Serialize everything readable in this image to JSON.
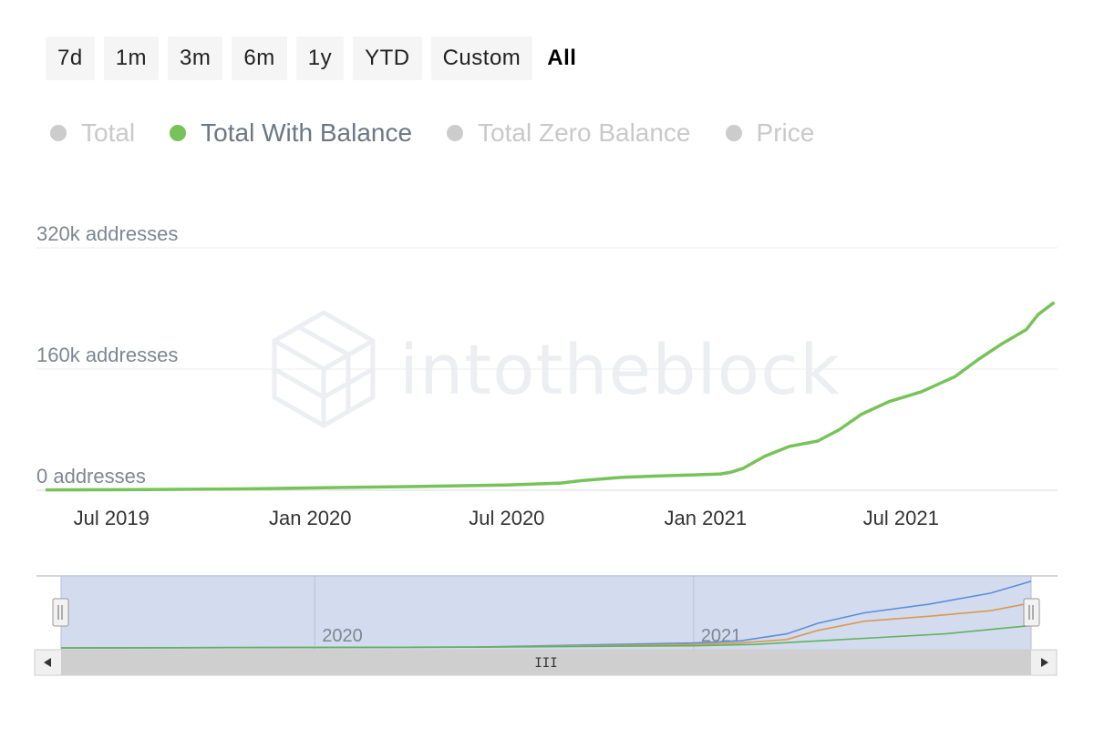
{
  "range_buttons": [
    {
      "label": "7d",
      "active": false
    },
    {
      "label": "1m",
      "active": false
    },
    {
      "label": "3m",
      "active": false
    },
    {
      "label": "6m",
      "active": false
    },
    {
      "label": "1y",
      "active": false
    },
    {
      "label": "YTD",
      "active": false
    },
    {
      "label": "Custom",
      "active": false
    },
    {
      "label": "All",
      "active": true
    }
  ],
  "legend": [
    {
      "label": "Total",
      "active": false,
      "color": "#cccccc"
    },
    {
      "label": "Total With Balance",
      "active": true,
      "color": "#77c35a"
    },
    {
      "label": "Total Zero Balance",
      "active": false,
      "color": "#cccccc"
    },
    {
      "label": "Price",
      "active": false,
      "color": "#cccccc"
    }
  ],
  "watermark": "intotheblock",
  "chart_data": {
    "type": "line",
    "title": "",
    "ylabel": "",
    "ylim": [
      0,
      320000
    ],
    "yticks": [
      {
        "value": 0,
        "label": "0 addresses"
      },
      {
        "value": 160000,
        "label": "160k addresses"
      },
      {
        "value": 320000,
        "label": "320k addresses"
      }
    ],
    "xticks": [
      {
        "date": "2019-07-01",
        "label": "Jul 2019"
      },
      {
        "date": "2020-01-01",
        "label": "Jan 2020"
      },
      {
        "date": "2020-07-01",
        "label": "Jul 2020"
      },
      {
        "date": "2021-01-01",
        "label": "Jan 2021"
      },
      {
        "date": "2021-07-01",
        "label": "Jul 2021"
      }
    ],
    "x_range": [
      "2019-05-01",
      "2021-11-23"
    ],
    "grid": true,
    "legend_position": "top-left",
    "series": [
      {
        "name": "Total With Balance",
        "color": "#77c35a",
        "points": [
          [
            "2019-05-01",
            500
          ],
          [
            "2019-08-01",
            1000
          ],
          [
            "2019-11-01",
            1800
          ],
          [
            "2020-01-20",
            3500
          ],
          [
            "2020-04-01",
            4800
          ],
          [
            "2020-07-01",
            7000
          ],
          [
            "2020-08-20",
            9500
          ],
          [
            "2020-09-10",
            13000
          ],
          [
            "2020-10-15",
            17000
          ],
          [
            "2020-11-20",
            19000
          ],
          [
            "2020-12-15",
            20000
          ],
          [
            "2021-01-15",
            21500
          ],
          [
            "2021-01-25",
            24000
          ],
          [
            "2021-02-05",
            29000
          ],
          [
            "2021-02-25",
            45000
          ],
          [
            "2021-03-20",
            58000
          ],
          [
            "2021-04-15",
            65000
          ],
          [
            "2021-05-05",
            80000
          ],
          [
            "2021-05-25",
            100000
          ],
          [
            "2021-06-20",
            117000
          ],
          [
            "2021-07-20",
            130000
          ],
          [
            "2021-08-20",
            150000
          ],
          [
            "2021-09-10",
            172000
          ],
          [
            "2021-10-01",
            192000
          ],
          [
            "2021-10-25",
            212000
          ],
          [
            "2021-11-05",
            232000
          ],
          [
            "2021-11-20",
            248000
          ]
        ]
      }
    ]
  },
  "navigator": {
    "labels": [
      {
        "date": "2020-01-01",
        "label": "2020"
      },
      {
        "date": "2021-01-01",
        "label": "2021"
      }
    ],
    "x_range": [
      "2019-05-01",
      "2021-11-23"
    ],
    "series": [
      {
        "color": "#5b8fd9",
        "points": [
          [
            "2019-05-01",
            0.0
          ],
          [
            "2020-06-01",
            0.01
          ],
          [
            "2021-01-01",
            0.07
          ],
          [
            "2021-02-15",
            0.1
          ],
          [
            "2021-04-01",
            0.2
          ],
          [
            "2021-05-01",
            0.35
          ],
          [
            "2021-06-15",
            0.5
          ],
          [
            "2021-08-15",
            0.62
          ],
          [
            "2021-10-15",
            0.78
          ],
          [
            "2021-11-23",
            0.95
          ]
        ]
      },
      {
        "color": "#d99a4f",
        "points": [
          [
            "2019-05-01",
            0.0
          ],
          [
            "2020-06-01",
            0.01
          ],
          [
            "2021-01-01",
            0.05
          ],
          [
            "2021-02-15",
            0.07
          ],
          [
            "2021-04-01",
            0.12
          ],
          [
            "2021-05-01",
            0.25
          ],
          [
            "2021-06-15",
            0.38
          ],
          [
            "2021-08-15",
            0.45
          ],
          [
            "2021-10-15",
            0.53
          ],
          [
            "2021-11-23",
            0.64
          ]
        ]
      },
      {
        "color": "#5fb45b",
        "points": [
          [
            "2019-05-01",
            0.0
          ],
          [
            "2020-06-01",
            0.01
          ],
          [
            "2021-01-01",
            0.03
          ],
          [
            "2021-03-01",
            0.05
          ],
          [
            "2021-05-01",
            0.1
          ],
          [
            "2021-07-01",
            0.15
          ],
          [
            "2021-09-01",
            0.2
          ],
          [
            "2021-11-23",
            0.32
          ]
        ]
      }
    ],
    "scrollbar_grip": "III"
  }
}
